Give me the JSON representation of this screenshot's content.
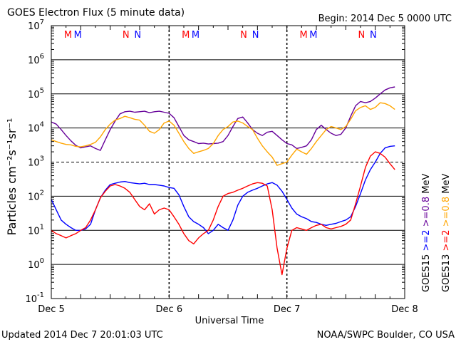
{
  "header": {
    "title": "GOES Electron Flux (5 minute data)",
    "begin": "Begin: 2014 Dec 5 0000 UTC"
  },
  "footer": {
    "updated": "Updated 2014 Dec  7 20:01:03 UTC",
    "credit": "NOAA/SWPC Boulder, CO USA"
  },
  "colors": {
    "goes15_e2": "#0000ff",
    "goes13_e2": "#ff0000",
    "goes15_e08": "#660099",
    "goes13_e08": "#ffa500",
    "grid": "#000000"
  },
  "chart_data": {
    "type": "line",
    "title": "GOES Electron Flux (5 minute data)",
    "xlabel": "Universal Time",
    "ylabel": "Particles cm⁻²s⁻¹sr⁻¹",
    "yscale": "log",
    "ylim": [
      0.1,
      10000000
    ],
    "xlim": [
      0,
      72
    ],
    "x_unit": "hours since 2014 Dec 5 0000 UTC",
    "x_ticks": [
      {
        "x": 0,
        "label": "Dec 5"
      },
      {
        "x": 24,
        "label": "Dec 6"
      },
      {
        "x": 48,
        "label": "Dec 7"
      },
      {
        "x": 72,
        "label": "Dec 8"
      }
    ],
    "y_ticks": [
      {
        "value": 10000000,
        "base": "10",
        "exp": "7"
      },
      {
        "value": 1000000,
        "base": "10",
        "exp": "6"
      },
      {
        "value": 100000,
        "base": "10",
        "exp": "5"
      },
      {
        "value": 10000,
        "base": "10",
        "exp": "4"
      },
      {
        "value": 1000,
        "base": "10",
        "exp": "3"
      },
      {
        "value": 100,
        "base": "10",
        "exp": "2"
      },
      {
        "value": 10,
        "base": "10",
        "exp": "1"
      },
      {
        "value": 1,
        "base": "10",
        "exp": "0"
      },
      {
        "value": 0.1,
        "base": "10",
        "exp": "-1"
      }
    ],
    "threshold_line": 1000,
    "markers": [
      {
        "label": "M",
        "x": 3.4,
        "color": "#ff0000"
      },
      {
        "label": "M",
        "x": 5.4,
        "color": "#0000ff"
      },
      {
        "label": "N",
        "x": 15.2,
        "color": "#ff0000"
      },
      {
        "label": "N",
        "x": 17.6,
        "color": "#0000ff"
      },
      {
        "label": "M",
        "x": 27.4,
        "color": "#ff0000"
      },
      {
        "label": "M",
        "x": 29.4,
        "color": "#0000ff"
      },
      {
        "label": "N",
        "x": 39.2,
        "color": "#ff0000"
      },
      {
        "label": "N",
        "x": 41.6,
        "color": "#0000ff"
      },
      {
        "label": "M",
        "x": 51.4,
        "color": "#ff0000"
      },
      {
        "label": "M",
        "x": 53.4,
        "color": "#0000ff"
      },
      {
        "label": "N",
        "x": 63.2,
        "color": "#ff0000"
      },
      {
        "label": "N",
        "x": 65.6,
        "color": "#0000ff"
      }
    ],
    "legend": [
      {
        "group": "GOES15",
        "label": ">=2",
        "color": "#0000ff"
      },
      {
        "group": "GOES13",
        "label": ">=2",
        "color": "#ff0000"
      },
      {
        "group": "GOES15",
        "label": ">=0.8",
        "unit": "MeV",
        "color": "#660099"
      },
      {
        "group": "GOES13",
        "label": ">=0.8",
        "unit": "MeV",
        "color": "#ffa500"
      }
    ],
    "series": [
      {
        "name": "GOES15 >=0.8 MeV",
        "color": "#660099",
        "x": [
          0,
          1,
          2,
          3,
          4,
          5,
          6,
          7,
          8,
          9,
          10,
          11,
          12,
          13,
          14,
          15,
          16,
          17,
          18,
          19,
          20,
          21,
          22,
          23,
          24,
          25,
          26,
          27,
          28,
          29,
          30,
          31,
          32,
          33,
          34,
          35,
          36,
          37,
          38,
          39,
          40,
          41,
          42,
          43,
          44,
          45,
          46,
          47,
          48,
          49,
          50,
          51,
          52,
          53,
          54,
          55,
          56,
          57,
          58,
          59,
          60,
          61,
          62,
          63,
          64,
          65,
          66,
          67,
          68,
          69,
          70
        ],
        "y": [
          15000,
          13000,
          9000,
          6000,
          4200,
          3100,
          2600,
          2800,
          3000,
          2500,
          2200,
          4500,
          9000,
          16000,
          26000,
          30000,
          31000,
          29000,
          30000,
          31000,
          28000,
          30000,
          31000,
          29000,
          27000,
          20000,
          11000,
          6000,
          4500,
          4000,
          3500,
          3600,
          3400,
          3500,
          3600,
          4000,
          6000,
          11000,
          19000,
          21000,
          14000,
          9000,
          7000,
          6000,
          7500,
          8000,
          6000,
          4500,
          3500,
          3200,
          2500,
          2700,
          3000,
          4500,
          9000,
          12000,
          9000,
          7000,
          6000,
          6500,
          10000,
          22000,
          45000,
          60000,
          55000,
          60000,
          75000,
          100000,
          130000,
          150000,
          160000
        ]
      },
      {
        "name": "GOES13 >=0.8 MeV",
        "color": "#ffa500",
        "x": [
          0,
          1,
          2,
          3,
          4,
          5,
          6,
          7,
          8,
          9,
          10,
          11,
          12,
          13,
          14,
          15,
          16,
          17,
          18,
          19,
          20,
          21,
          22,
          23,
          24,
          25,
          26,
          27,
          28,
          29,
          30,
          31,
          32,
          33,
          34,
          35,
          36,
          37,
          38,
          39,
          40,
          41,
          42,
          43,
          44,
          45,
          46,
          47,
          48,
          49,
          50,
          51,
          52,
          53,
          54,
          55,
          56,
          57,
          58,
          59,
          60,
          61,
          62,
          63,
          64,
          65,
          66,
          67,
          68,
          69,
          70
        ],
        "y": [
          4500,
          4000,
          3600,
          3300,
          3200,
          2900,
          2800,
          3000,
          3300,
          3800,
          5500,
          9000,
          13000,
          17000,
          19000,
          22000,
          20000,
          18000,
          17000,
          12000,
          8000,
          7000,
          9000,
          14000,
          16000,
          12000,
          7000,
          4000,
          2500,
          1800,
          2000,
          2200,
          2500,
          3500,
          6000,
          9000,
          11000,
          15000,
          16000,
          14000,
          11000,
          9000,
          5000,
          3000,
          2000,
          1400,
          800,
          900,
          1000,
          1600,
          2400,
          2000,
          1700,
          2500,
          4000,
          6000,
          9000,
          11000,
          10000,
          9000,
          11000,
          18000,
          32000,
          40000,
          45000,
          35000,
          40000,
          55000,
          52000,
          45000,
          35000
        ]
      },
      {
        "name": "GOES15 >=2 MeV",
        "color": "#0000ff",
        "x": [
          0,
          1,
          2,
          3,
          4,
          5,
          6,
          7,
          8,
          9,
          10,
          11,
          12,
          13,
          14,
          15,
          16,
          17,
          18,
          19,
          20,
          21,
          22,
          23,
          24,
          25,
          26,
          27,
          28,
          29,
          30,
          31,
          32,
          33,
          34,
          35,
          36,
          37,
          38,
          39,
          40,
          41,
          42,
          43,
          44,
          45,
          46,
          47,
          48,
          49,
          50,
          51,
          52,
          53,
          54,
          55,
          56,
          57,
          58,
          59,
          60,
          61,
          62,
          63,
          64,
          65,
          66,
          67,
          68,
          69,
          70
        ],
        "y": [
          80,
          40,
          20,
          15,
          12,
          10,
          10,
          11,
          15,
          40,
          90,
          150,
          220,
          240,
          260,
          270,
          250,
          240,
          230,
          240,
          220,
          220,
          210,
          200,
          180,
          170,
          110,
          50,
          25,
          18,
          15,
          12,
          8,
          10,
          15,
          12,
          10,
          20,
          55,
          100,
          130,
          150,
          170,
          200,
          230,
          250,
          210,
          140,
          80,
          45,
          30,
          25,
          22,
          18,
          17,
          15,
          14,
          15,
          16,
          18,
          20,
          25,
          50,
          120,
          300,
          600,
          1000,
          1800,
          2600,
          2900,
          3000
        ]
      },
      {
        "name": "GOES13 >=2 MeV",
        "color": "#ff0000",
        "x": [
          0,
          1,
          2,
          3,
          4,
          5,
          6,
          7,
          8,
          9,
          10,
          11,
          12,
          13,
          14,
          15,
          16,
          17,
          18,
          19,
          20,
          21,
          22,
          23,
          24,
          25,
          26,
          27,
          28,
          29,
          30,
          31,
          32,
          33,
          34,
          35,
          36,
          37,
          38,
          39,
          40,
          41,
          42,
          43,
          44,
          45,
          46,
          47,
          48,
          49,
          50,
          51,
          52,
          53,
          54,
          55,
          56,
          57,
          58,
          59,
          60,
          61,
          62,
          63,
          64,
          65,
          66,
          67,
          68,
          69,
          70
        ],
        "y": [
          10,
          8,
          7,
          6,
          7,
          8,
          10,
          12,
          20,
          40,
          90,
          140,
          200,
          220,
          200,
          170,
          130,
          80,
          50,
          40,
          60,
          30,
          40,
          45,
          40,
          25,
          15,
          8,
          5,
          4,
          6,
          8,
          10,
          20,
          50,
          100,
          120,
          130,
          150,
          170,
          200,
          230,
          250,
          240,
          200,
          40,
          3,
          0.5,
          3,
          10,
          12,
          11,
          10,
          12,
          14,
          15,
          12,
          11,
          12,
          13,
          15,
          20,
          60,
          200,
          700,
          1500,
          2000,
          1800,
          1400,
          900,
          600
        ]
      }
    ]
  }
}
